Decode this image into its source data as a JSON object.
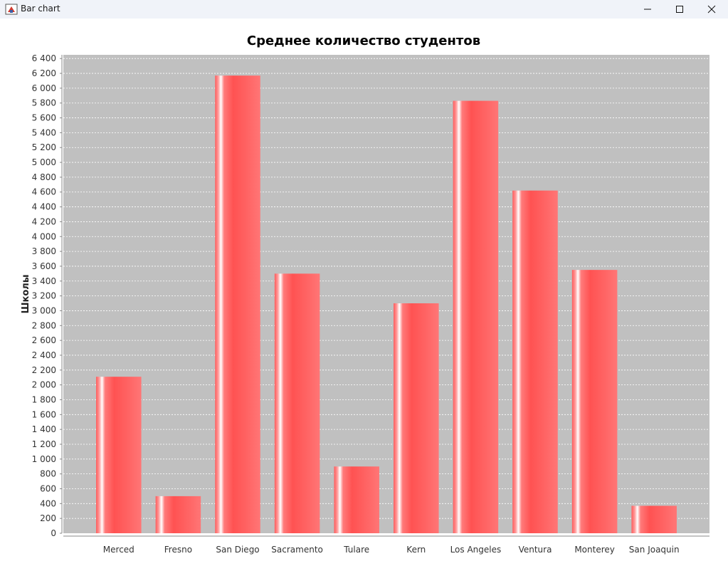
{
  "window": {
    "title": "Bar chart",
    "icons": [
      "java-app-icon",
      "minimize-icon",
      "maximize-icon",
      "close-icon"
    ]
  },
  "chart_data": {
    "type": "bar",
    "title": "Среднее количество студентов",
    "xlabel": "",
    "ylabel": "Школы",
    "categories": [
      "Merced",
      "Fresno",
      "San Diego",
      "Sacramento",
      "Tulare",
      "Kern",
      "Los Angeles",
      "Ventura",
      "Monterey",
      "San Joaquin"
    ],
    "values": [
      2110,
      500,
      6170,
      3500,
      900,
      3100,
      5830,
      4620,
      3550,
      370
    ],
    "ylim": [
      0,
      6450
    ],
    "yticks": [
      0,
      200,
      400,
      600,
      800,
      1000,
      1200,
      1400,
      1600,
      1800,
      2000,
      2200,
      2400,
      2600,
      2800,
      3000,
      3200,
      3400,
      3600,
      3800,
      4000,
      4200,
      4400,
      4600,
      4800,
      5000,
      5200,
      5400,
      5600,
      5800,
      6000,
      6200,
      6400
    ],
    "ytick_labels": [
      "0",
      "200",
      "400",
      "600",
      "800",
      "1 000",
      "1 200",
      "1 400",
      "1 600",
      "1 800",
      "2 000",
      "2 200",
      "2 400",
      "2 600",
      "2 800",
      "3 000",
      "3 200",
      "3 400",
      "3 600",
      "3 800",
      "4 000",
      "4 200",
      "4 400",
      "4 600",
      "4 800",
      "5 000",
      "5 200",
      "5 400",
      "5 600",
      "5 800",
      "6 000",
      "6 200",
      "6 400"
    ],
    "grid": true,
    "bar_color": "#ff5555",
    "plot_background": "#c0c0c0",
    "grid_color": "#ffffff"
  }
}
